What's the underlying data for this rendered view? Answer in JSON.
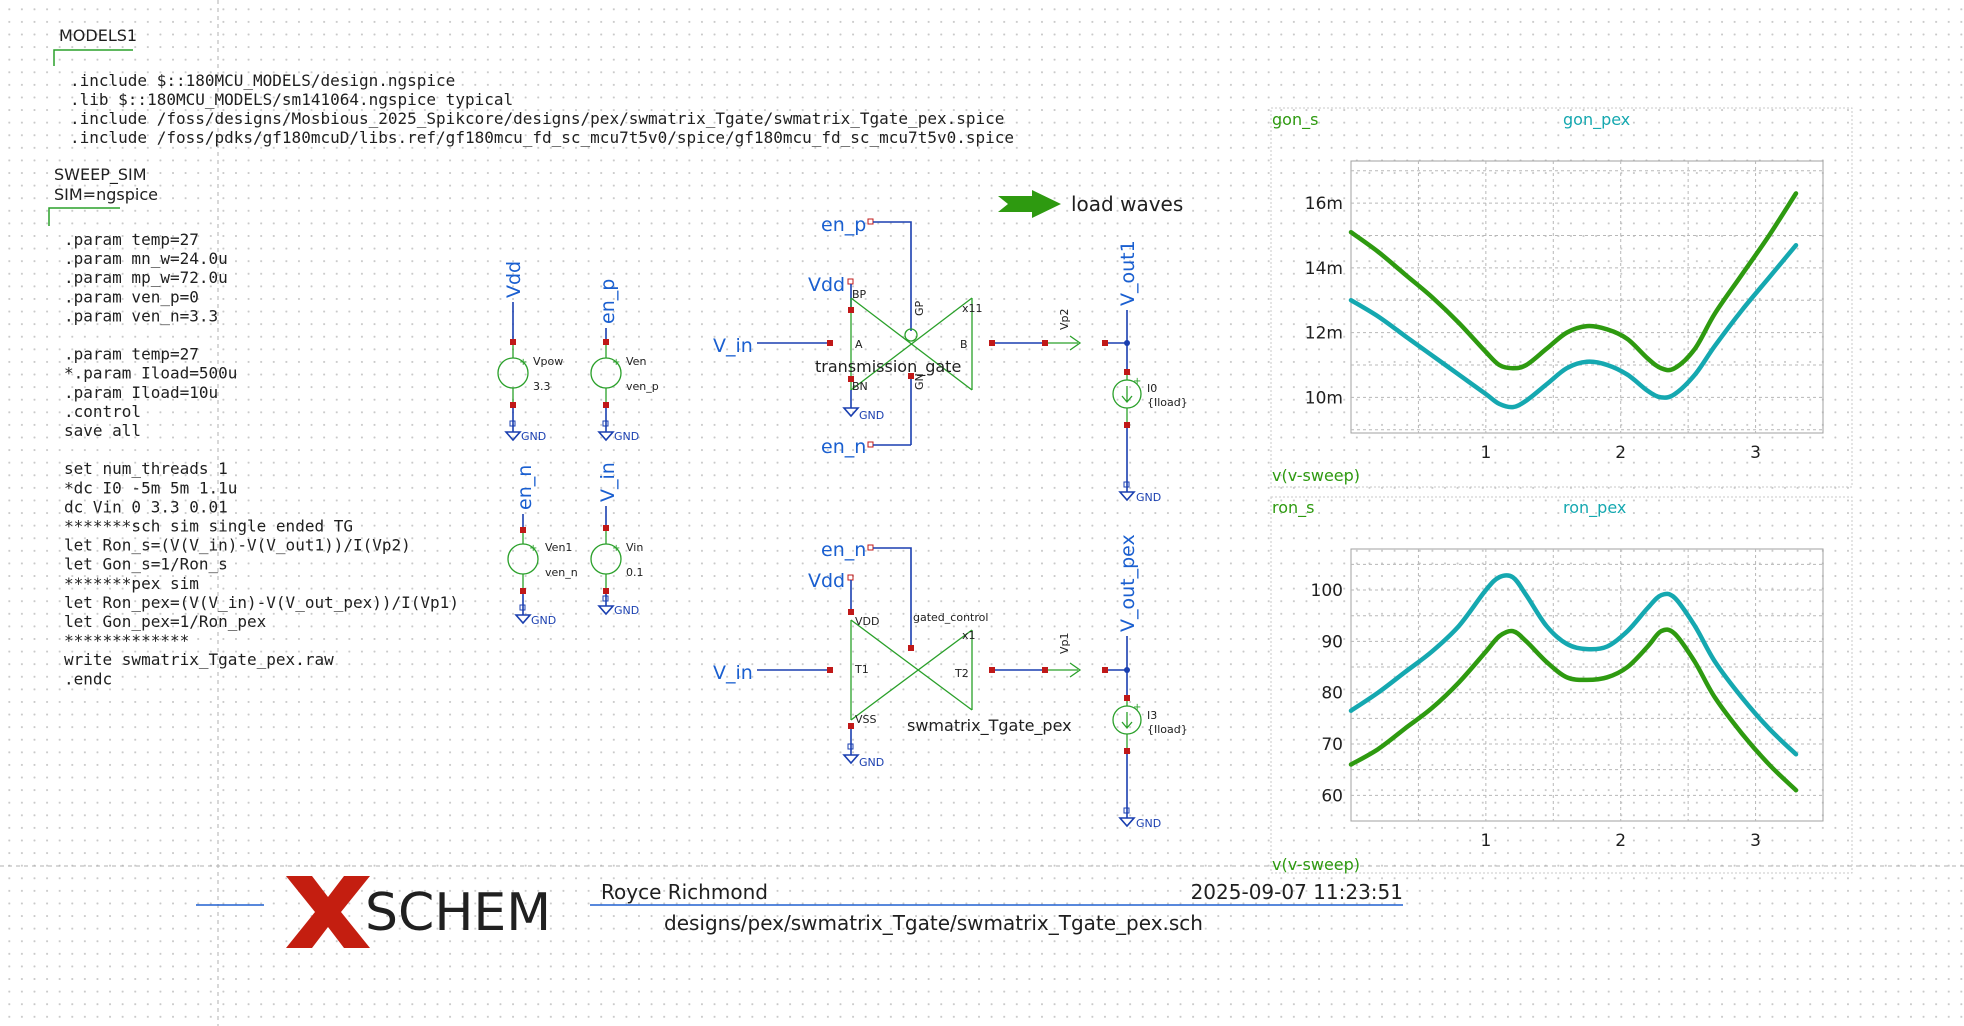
{
  "models_block": {
    "title": "MODELS1",
    "lines": [
      ".include $::180MCU_MODELS/design.ngspice",
      ".lib $::180MCU_MODELS/sm141064.ngspice typical",
      ".include /foss/designs/Mosbious_2025_Spikcore/designs/pex/swmatrix_Tgate/swmatrix_Tgate_pex.spice",
      ".include /foss/pdks/gf180mcuD/libs.ref/gf180mcu_fd_sc_mcu7t5v0/spice/gf180mcu_fd_sc_mcu7t5v0.spice"
    ]
  },
  "sim_block": {
    "title": "SWEEP_SIM",
    "subtitle": "SIM=ngspice",
    "lines": [
      ".param temp=27",
      ".param mn_w=24.0u",
      ".param mp_w=72.0u",
      ".param ven_p=0",
      ".param ven_n=3.3",
      "",
      ".param temp=27",
      "*.param Iload=500u",
      ".param Iload=10u",
      ".control",
      "save all",
      "",
      "set num_threads 1",
      "*dc I0 -5m 5m 1.1u",
      "dc Vin 0 3.3 0.01",
      "*******sch sim single ended TG",
      "let Ron_s=(V(V_in)-V(V_out1))/I(Vp2)",
      "let Gon_s=1/Ron_s",
      "*******pex sim",
      "let Ron_pex=(V(V_in)-V(V_out_pex))/I(Vp1)",
      "let Gon_pex=1/Ron_pex",
      "*************",
      "write swmatrix_Tgate_pex.raw",
      ".endc"
    ]
  },
  "sources": {
    "vpow": {
      "net": "Vdd",
      "name": "Vpow",
      "value": "3.3"
    },
    "ven": {
      "net": "en_p",
      "name": "Ven",
      "value": "ven_p"
    },
    "ven1": {
      "net": "en_n",
      "name": "Ven1",
      "value": "ven_n"
    },
    "vin": {
      "net": "V_in",
      "name": "Vin",
      "value": "0.1"
    },
    "gnd": "GND"
  },
  "tgate_top": {
    "en_p": "en_p",
    "en_n": "en_n",
    "vdd": "Vdd",
    "vin": "V_in",
    "pin_bp": "BP",
    "pin_gp": "GP",
    "pin_a": "A",
    "pin_b": "B",
    "pin_bn": "BN",
    "pin_gn": "GN",
    "inst": "x11",
    "label": "transmission_gate",
    "probe": "Vp2",
    "out": "V_out1",
    "load_name": "I0",
    "load_value": "{Iload}",
    "gnd": "GND",
    "gnd2": "GND"
  },
  "tgate_bottom": {
    "en_n": "en_n",
    "vdd": "Vdd",
    "vin": "V_in",
    "pin_vdd": "VDD",
    "pin_gc": "gated_control",
    "pin_t1": "T1",
    "pin_t2": "T2",
    "pin_vss": "VSS",
    "inst": "x1",
    "label": "swmatrix_Tgate_pex",
    "probe": "Vp1",
    "out": "V_out_pex",
    "load_name": "I3",
    "load_value": "{Iload}",
    "gnd": "GND",
    "gnd2": "GND"
  },
  "load_waves": {
    "label": "load waves"
  },
  "title_block": {
    "logo": "SCHEM",
    "author": "Royce Richmond",
    "date": "2025-09-07  11:23:51",
    "path": "designs/pex/swmatrix_Tgate/swmatrix_Tgate_pex.sch"
  },
  "colors": {
    "green_trace": "#2e9a10",
    "teal_trace": "#15a8b0",
    "net_blue": "#1a5fd0",
    "pin_red": "#c01818",
    "logo_red": "#c41e10"
  },
  "chart_data": [
    {
      "type": "line",
      "xlabel": "v(v-sweep)",
      "x_ticks": [
        1,
        2,
        3
      ],
      "y_ticks": [
        0.01,
        0.012,
        0.014,
        0.016
      ],
      "y_tick_labels": [
        "10m",
        "12m",
        "14m",
        "16m"
      ],
      "xlim": [
        0.0,
        3.5
      ],
      "ylim": [
        0.0089,
        0.0173
      ],
      "grid": true,
      "series": [
        {
          "name": "gon_s",
          "color": "#2e9a10",
          "x": [
            0.0,
            0.2,
            0.4,
            0.6,
            0.8,
            1.0,
            1.1,
            1.2,
            1.3,
            1.45,
            1.6,
            1.75,
            1.9,
            2.05,
            2.2,
            2.3,
            2.4,
            2.55,
            2.7,
            2.9,
            3.1,
            3.3
          ],
          "values": [
            0.0151,
            0.0145,
            0.0138,
            0.0131,
            0.0123,
            0.0114,
            0.011,
            0.0109,
            0.011,
            0.0115,
            0.012,
            0.0122,
            0.0121,
            0.0118,
            0.0112,
            0.0109,
            0.0109,
            0.0115,
            0.0126,
            0.0138,
            0.015,
            0.0163
          ]
        },
        {
          "name": "gon_pex",
          "color": "#15a8b0",
          "x": [
            0.0,
            0.2,
            0.4,
            0.6,
            0.8,
            1.0,
            1.1,
            1.2,
            1.3,
            1.45,
            1.6,
            1.75,
            1.9,
            2.05,
            2.2,
            2.3,
            2.4,
            2.55,
            2.7,
            2.9,
            3.1,
            3.3
          ],
          "values": [
            0.013,
            0.0125,
            0.0119,
            0.0113,
            0.0107,
            0.0101,
            0.0098,
            0.0097,
            0.0099,
            0.0104,
            0.0109,
            0.0111,
            0.011,
            0.0107,
            0.0102,
            0.01,
            0.0101,
            0.0107,
            0.0116,
            0.0127,
            0.0137,
            0.0147
          ]
        }
      ]
    },
    {
      "type": "line",
      "xlabel": "v(v-sweep)",
      "x_ticks": [
        1,
        2,
        3
      ],
      "y_ticks": [
        60,
        70,
        80,
        90,
        100
      ],
      "y_tick_labels": [
        "60",
        "70",
        "80",
        "90",
        "100"
      ],
      "xlim": [
        0.0,
        3.5
      ],
      "ylim": [
        55,
        108
      ],
      "grid": true,
      "series": [
        {
          "name": "ron_s",
          "color": "#2e9a10",
          "x": [
            0.0,
            0.2,
            0.4,
            0.6,
            0.8,
            1.0,
            1.1,
            1.2,
            1.3,
            1.45,
            1.6,
            1.75,
            1.9,
            2.05,
            2.2,
            2.3,
            2.4,
            2.55,
            2.7,
            2.9,
            3.1,
            3.3
          ],
          "values": [
            66,
            69,
            73,
            77,
            82,
            88,
            91,
            92,
            90,
            86,
            83,
            82.5,
            83,
            85,
            89,
            92,
            91.5,
            86,
            79,
            72,
            66,
            61
          ]
        },
        {
          "name": "ron_pex",
          "color": "#15a8b0",
          "x": [
            0.0,
            0.2,
            0.4,
            0.6,
            0.8,
            1.0,
            1.1,
            1.2,
            1.3,
            1.45,
            1.6,
            1.75,
            1.9,
            2.05,
            2.2,
            2.3,
            2.4,
            2.55,
            2.7,
            2.9,
            3.1,
            3.3
          ],
          "values": [
            76.5,
            80,
            84,
            88,
            93,
            100,
            102.5,
            102.5,
            99,
            93,
            89.5,
            88.5,
            89,
            92,
            96.5,
            99,
            98.5,
            93,
            86,
            79,
            73,
            68
          ]
        }
      ]
    }
  ]
}
